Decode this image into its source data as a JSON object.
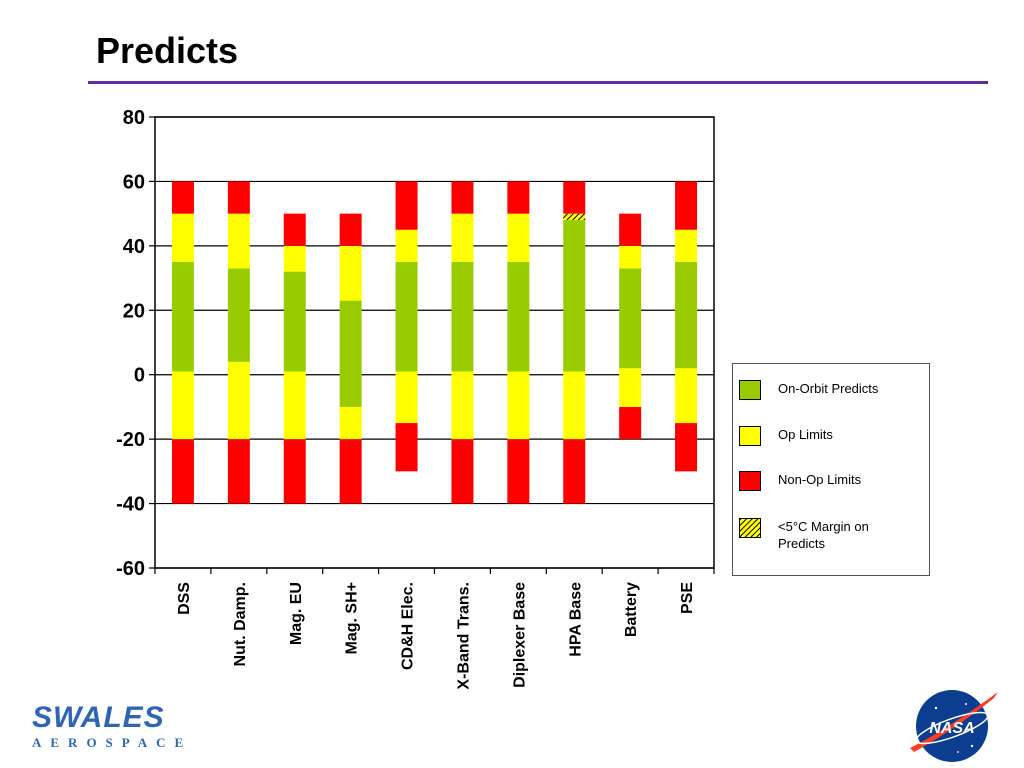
{
  "page": {
    "title": "Predicts"
  },
  "colors": {
    "on_orbit": "#99cc00",
    "op_limits": "#ffff00",
    "non_op_limits": "#ff0000",
    "title_rule": "#5b2ca3"
  },
  "legend": {
    "items": [
      {
        "label": "On-Orbit Predicts",
        "color": "#99cc00",
        "pattern": false
      },
      {
        "label": "Op Limits",
        "color": "#ffff00",
        "pattern": false
      },
      {
        "label": "Non-Op Limits",
        "color": "#ff0000",
        "pattern": false
      },
      {
        "label": "<5°C Margin on Predicts",
        "color": "#ffff00",
        "pattern": true
      }
    ]
  },
  "logos": {
    "swales_word": "SWALES",
    "swales_sub": "AEROSPACE",
    "nasa": "NASA"
  },
  "chart_data": {
    "type": "bar",
    "stacked": true,
    "ylim": [
      -60,
      80
    ],
    "yticks": [
      80,
      60,
      40,
      20,
      0,
      -20,
      -40,
      -60
    ],
    "grid": true,
    "legend_position": "right",
    "categories": [
      "DSS",
      "Nut. Damp.",
      "Mag. EU",
      "Mag. SH+",
      "CD&H Elec.",
      "X-Band Trans.",
      "Diplexer Base",
      "HPA Base",
      "Battery",
      "PSE"
    ],
    "series": [
      {
        "name": "Non-Op Limits",
        "ranges": [
          [
            -40,
            -20
          ],
          [
            -40,
            -20
          ],
          [
            -40,
            -20
          ],
          [
            -40,
            -20
          ],
          [
            -30,
            -15
          ],
          [
            -40,
            -20
          ],
          [
            -40,
            -20
          ],
          [
            -40,
            -20
          ],
          [
            -20,
            -10
          ],
          [
            -30,
            -15
          ]
        ]
      },
      {
        "name": "Op Limits",
        "ranges": [
          [
            -20,
            1
          ],
          [
            -20,
            4
          ],
          [
            -20,
            1
          ],
          [
            -20,
            -10
          ],
          [
            -15,
            1
          ],
          [
            -20,
            1
          ],
          [
            -20,
            1
          ],
          [
            -20,
            1
          ],
          [
            -10,
            2
          ],
          [
            -15,
            2
          ]
        ]
      },
      {
        "name": "On-Orbit Predicts",
        "ranges": [
          [
            1,
            35
          ],
          [
            4,
            33
          ],
          [
            1,
            32
          ],
          [
            -10,
            23
          ],
          [
            1,
            35
          ],
          [
            1,
            35
          ],
          [
            1,
            35
          ],
          [
            1,
            48
          ],
          [
            2,
            33
          ],
          [
            2,
            35
          ]
        ]
      },
      {
        "name": "<5°C Margin on Predicts",
        "ranges": [
          null,
          null,
          null,
          null,
          null,
          null,
          null,
          [
            48,
            50
          ],
          null,
          null
        ]
      },
      {
        "name": "Op Limits",
        "ranges": [
          [
            35,
            50
          ],
          [
            33,
            50
          ],
          [
            32,
            40
          ],
          [
            23,
            40
          ],
          [
            35,
            45
          ],
          [
            35,
            50
          ],
          [
            35,
            50
          ],
          null,
          [
            33,
            40
          ],
          [
            35,
            45
          ]
        ]
      },
      {
        "name": "Non-Op Limits",
        "ranges": [
          [
            50,
            60
          ],
          [
            50,
            60
          ],
          [
            40,
            50
          ],
          [
            40,
            50
          ],
          [
            45,
            60
          ],
          [
            50,
            60
          ],
          [
            50,
            60
          ],
          [
            50,
            60
          ],
          [
            40,
            50
          ],
          [
            45,
            60
          ]
        ]
      }
    ]
  }
}
